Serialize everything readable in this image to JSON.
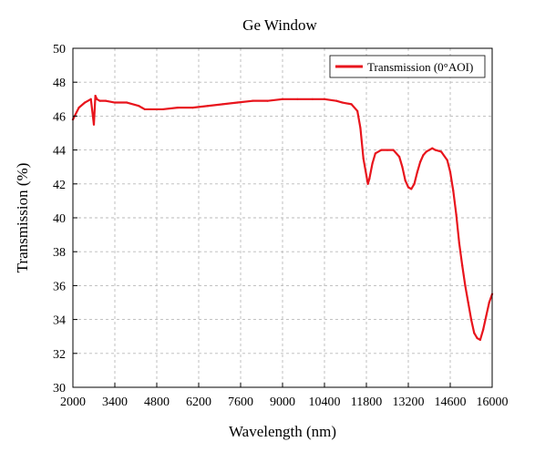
{
  "chart_data": {
    "type": "line",
    "title": "Ge Window",
    "xlabel": "Wavelength (nm)",
    "ylabel": "Transmission (%)",
    "xlim": [
      2000,
      16000
    ],
    "ylim": [
      30,
      50
    ],
    "x_ticks": [
      2000,
      3400,
      4800,
      6200,
      7600,
      9000,
      10400,
      11800,
      13200,
      14600,
      16000
    ],
    "y_ticks": [
      30,
      32,
      34,
      36,
      38,
      40,
      42,
      44,
      46,
      48,
      50
    ],
    "grid": true,
    "legend_position": "top-right",
    "series": [
      {
        "name": "Transmission (0°AOI)",
        "color": "#e8141c",
        "x": [
          2000,
          2200,
          2400,
          2600,
          2700,
          2750,
          2800,
          2900,
          3100,
          3400,
          3800,
          4200,
          4300,
          4400,
          4600,
          5000,
          5500,
          6000,
          6500,
          7000,
          7500,
          8000,
          8500,
          9000,
          9500,
          10000,
          10400,
          10800,
          11000,
          11300,
          11500,
          11600,
          11700,
          11800,
          11850,
          11900,
          12000,
          12100,
          12300,
          12500,
          12700,
          12900,
          13000,
          13100,
          13200,
          13300,
          13400,
          13500,
          13600,
          13700,
          13800,
          13900,
          14000,
          14100,
          14300,
          14500,
          14600,
          14700,
          14800,
          14900,
          15000,
          15100,
          15200,
          15300,
          15400,
          15500,
          15600,
          15700,
          15800,
          15900,
          16000
        ],
        "y": [
          45.8,
          46.5,
          46.8,
          47.0,
          45.5,
          47.2,
          47.0,
          46.9,
          46.9,
          46.8,
          46.8,
          46.6,
          46.5,
          46.4,
          46.4,
          46.4,
          46.5,
          46.5,
          46.6,
          46.7,
          46.8,
          46.9,
          46.9,
          47.0,
          47.0,
          47.0,
          47.0,
          46.9,
          46.8,
          46.7,
          46.3,
          45.3,
          43.5,
          42.5,
          42.0,
          42.3,
          43.2,
          43.8,
          44.0,
          44.0,
          44.0,
          43.6,
          43.0,
          42.2,
          41.8,
          41.7,
          42.0,
          42.7,
          43.3,
          43.7,
          43.9,
          44.0,
          44.1,
          44.0,
          43.9,
          43.4,
          42.7,
          41.6,
          40.2,
          38.5,
          37.2,
          36.0,
          35.0,
          34.0,
          33.2,
          32.9,
          32.8,
          33.4,
          34.2,
          35.0,
          35.5
        ]
      }
    ]
  }
}
